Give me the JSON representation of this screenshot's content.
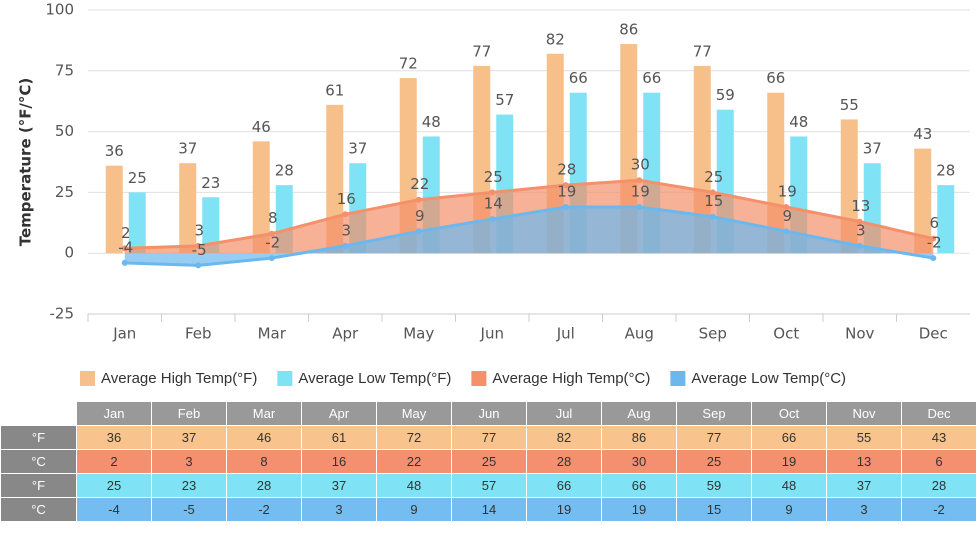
{
  "chart_data": {
    "type": "combo",
    "y_label": "Temperature (°F/°C)",
    "categories": [
      "Jan",
      "Feb",
      "Mar",
      "Apr",
      "May",
      "Jun",
      "Jul",
      "Aug",
      "Sep",
      "Oct",
      "Nov",
      "Dec"
    ],
    "series": [
      {
        "name": "Average High Temp(°F)",
        "type": "bar",
        "color": "#f7bf8a",
        "values": [
          36,
          37,
          46,
          61,
          72,
          77,
          82,
          86,
          77,
          66,
          55,
          43
        ]
      },
      {
        "name": "Average Low Temp(°F)",
        "type": "bar",
        "color": "#7fe3f5",
        "values": [
          25,
          23,
          28,
          37,
          48,
          57,
          66,
          66,
          59,
          48,
          37,
          28
        ]
      },
      {
        "name": "Average High Temp(°C)",
        "type": "area",
        "color": "#f4906a",
        "values": [
          2,
          3,
          8,
          16,
          22,
          25,
          28,
          30,
          25,
          19,
          13,
          6
        ]
      },
      {
        "name": "Average Low Temp(°C)",
        "type": "area",
        "color": "#6bb8ee",
        "values": [
          -4,
          -5,
          -2,
          3,
          9,
          14,
          19,
          19,
          15,
          9,
          3,
          -2
        ]
      }
    ],
    "ylim": [
      -25,
      100
    ],
    "yticks": [
      -25,
      0,
      25,
      50,
      75,
      100
    ],
    "grid": true
  },
  "table": {
    "row_labels": [
      "°F",
      "°C",
      "°F",
      "°C"
    ]
  }
}
